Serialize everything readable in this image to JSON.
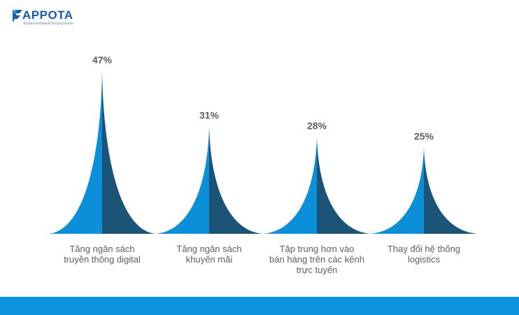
{
  "brand": {
    "name": "APPOTA",
    "tagline": "Entertainment Ecosystem"
  },
  "colors": {
    "light": "#0C8FD9",
    "dark": "#1C5478",
    "label": "#5a5f66",
    "footer": "#0B93DE",
    "logo": "#1a5aa8"
  },
  "chart_data": {
    "type": "bar",
    "title": "",
    "xlabel": "",
    "ylabel": "",
    "ylim": [
      0,
      50
    ],
    "categories": [
      "Tăng ngân sách truyền thông digital",
      "Tăng ngân sách khuyến mãi",
      "Tập trung hơn vào bán hàng trên các kênh trực tuyến",
      "Thay đổi hệ thống logistics"
    ],
    "category_lines": [
      [
        "Tăng ngân sách",
        "truyền thông digital"
      ],
      [
        "Tăng ngân sách",
        "khuyến mãi"
      ],
      [
        "Tập trung hơn vào",
        "bán hàng trên các kênh",
        "trực tuyến"
      ],
      [
        "Thay đổi hệ thống",
        "logistics"
      ]
    ],
    "values": [
      47,
      31,
      28,
      25
    ],
    "value_labels": [
      "47%",
      "31%",
      "28%",
      "25%"
    ]
  }
}
